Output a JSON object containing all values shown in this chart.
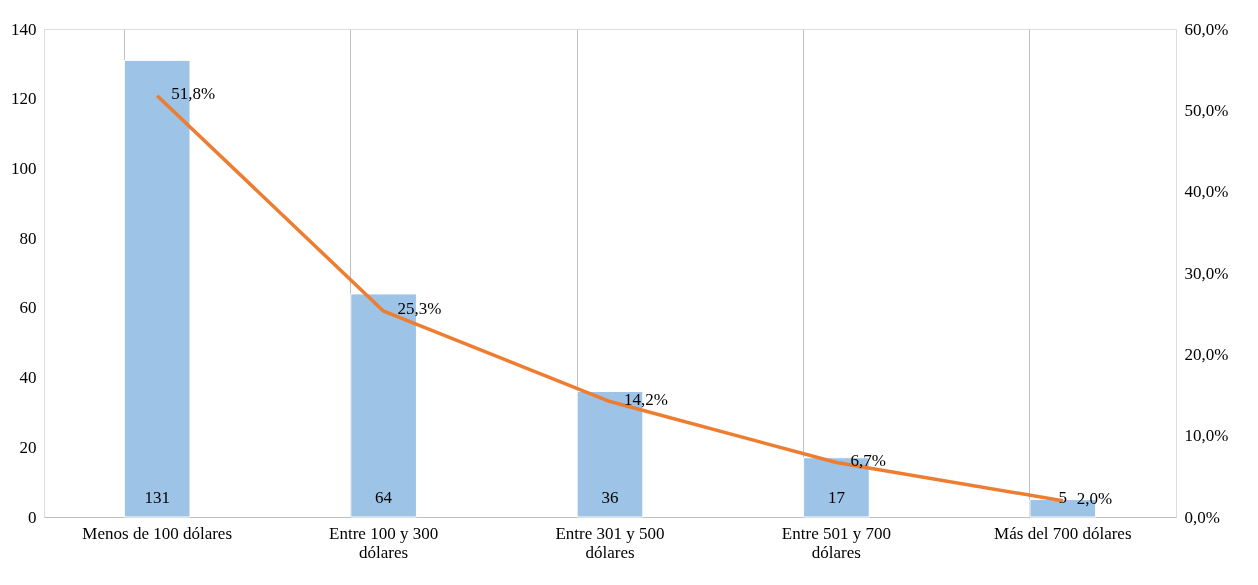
{
  "chart_data": {
    "type": "bar",
    "categories": [
      "Menos de 100 dólares",
      "Entre 100 y 300 dólares",
      "Entre 301 y 500 dólares",
      "Entre 501 y 700 dólares",
      "Más del 700 dólares"
    ],
    "series": [
      {
        "color": "#9dc3e6",
        "values": [
          131,
          64,
          36,
          17,
          5
        ],
        "value_labels": [
          "131",
          "64",
          "36",
          "17",
          "5"
        ]
      },
      {
        "type": "line",
        "axis": "y2",
        "color": "#ed7d31",
        "values": [
          51.8,
          25.3,
          14.2,
          6.7,
          2.0
        ],
        "value_labels": [
          "51,8%",
          "25,3%",
          "14,2%",
          "6,7%",
          "2,0%"
        ]
      }
    ],
    "ylim": [
      0,
      140
    ],
    "yticks": [
      0,
      20,
      40,
      60,
      80,
      100,
      120,
      140
    ],
    "y2lim": [
      0,
      60
    ],
    "y2ticks": [
      {
        "value": 0,
        "label": "0,0%"
      },
      {
        "value": 10,
        "label": "10,0%"
      },
      {
        "value": 20,
        "label": "20,0%"
      },
      {
        "value": 30,
        "label": "30,0%"
      },
      {
        "value": 40,
        "label": "40,0%"
      },
      {
        "value": 50,
        "label": "50,0%"
      },
      {
        "value": 60,
        "label": "60,0%"
      }
    ],
    "grid": "x",
    "marker": "none",
    "line_style": "solid"
  }
}
